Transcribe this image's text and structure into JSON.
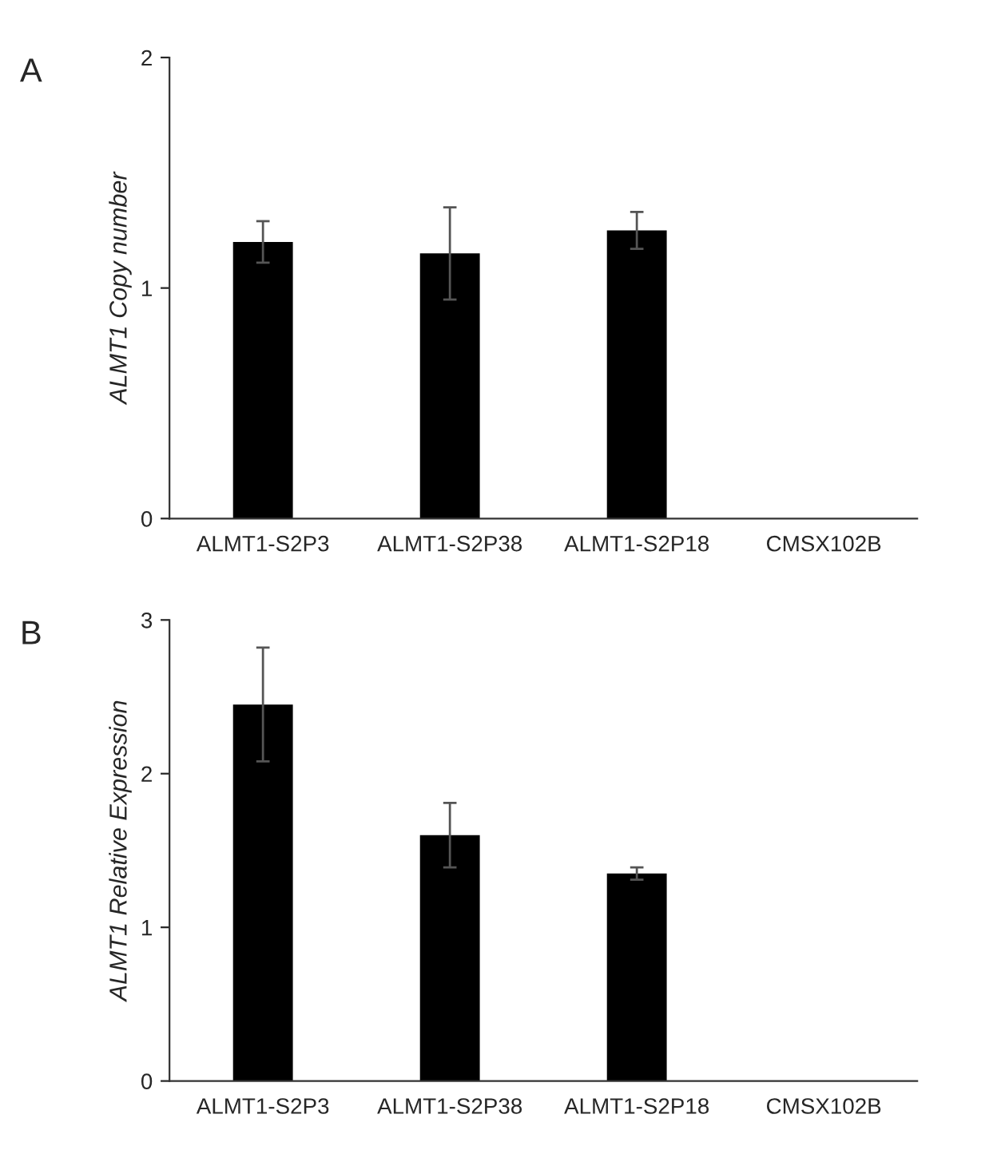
{
  "chart_data": [
    {
      "type": "bar",
      "annotations": [
        "A"
      ],
      "ylabel": "ALMT1 Copy number",
      "categories": [
        "ALMT1-S2P3",
        "ALMT1-S2P38",
        "ALMT1-S2P18",
        "CMSX102B"
      ],
      "values": [
        1.2,
        1.15,
        1.25,
        0
      ],
      "errors": [
        0.09,
        0.2,
        0.08,
        null
      ],
      "color": "#000000",
      "ylim": [
        0,
        2
      ],
      "yticks": [
        0,
        1,
        2
      ],
      "grid": false,
      "legend": false
    },
    {
      "type": "bar",
      "annotations": [
        "B"
      ],
      "ylabel": "ALMT1 Relative Expression",
      "categories": [
        "ALMT1-S2P3",
        "ALMT1-S2P38",
        "ALMT1-S2P18",
        "CMSX102B"
      ],
      "values": [
        2.45,
        1.6,
        1.35,
        0
      ],
      "errors": [
        0.37,
        0.21,
        0.04,
        null
      ],
      "color": "#000000",
      "ylim": [
        0,
        3
      ],
      "yticks": [
        0,
        1,
        2,
        3
      ],
      "grid": false,
      "legend": false
    }
  ]
}
